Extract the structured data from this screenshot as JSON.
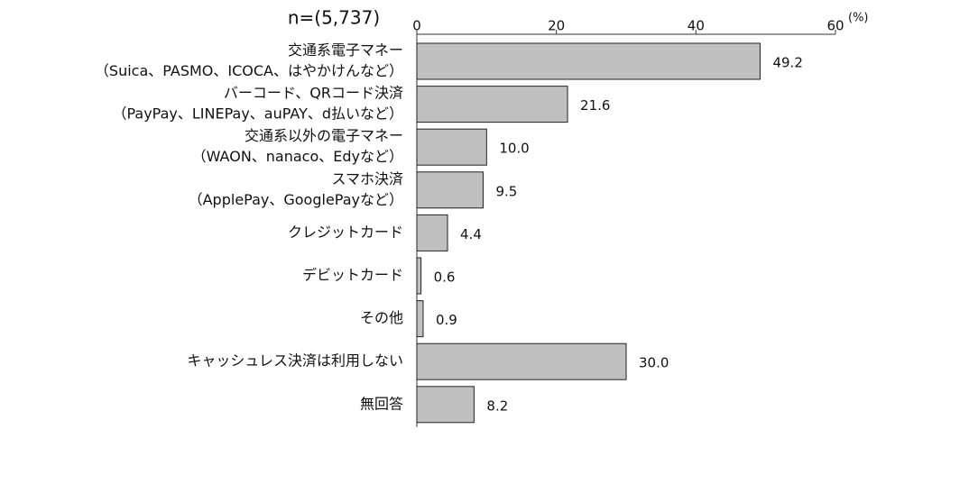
{
  "chart_data": {
    "type": "bar",
    "orientation": "horizontal",
    "annotation": "n=(5,737)",
    "unit": "(%)",
    "categories": [
      [
        "交通系電子マネー",
        "（Suica、PASMO、ICOCA、はやかけんなど）"
      ],
      [
        "バーコード、QRコード決済",
        "（PayPay、LINEPay、auPAY、d払いなど）"
      ],
      [
        "交通系以外の電子マネー",
        "（WAON、nanaco、Edyなど）"
      ],
      [
        "スマホ決済",
        "（ApplePay、GooglePayなど）"
      ],
      [
        "クレジットカード"
      ],
      [
        "デビットカード"
      ],
      [
        "その他"
      ],
      [
        "キャッシュレス決済は利用しない"
      ],
      [
        "無回答"
      ]
    ],
    "values": [
      49.2,
      21.6,
      10.0,
      9.5,
      4.4,
      0.6,
      0.9,
      30.0,
      8.2
    ],
    "value_labels": [
      "49.2",
      "21.6",
      "10.0",
      "9.5",
      "4.4",
      "0.6",
      "0.9",
      "30.0",
      "8.2"
    ],
    "color": "#c0c0c0",
    "xlim": [
      0,
      60
    ],
    "xticks": [
      0,
      20,
      40,
      60
    ]
  }
}
